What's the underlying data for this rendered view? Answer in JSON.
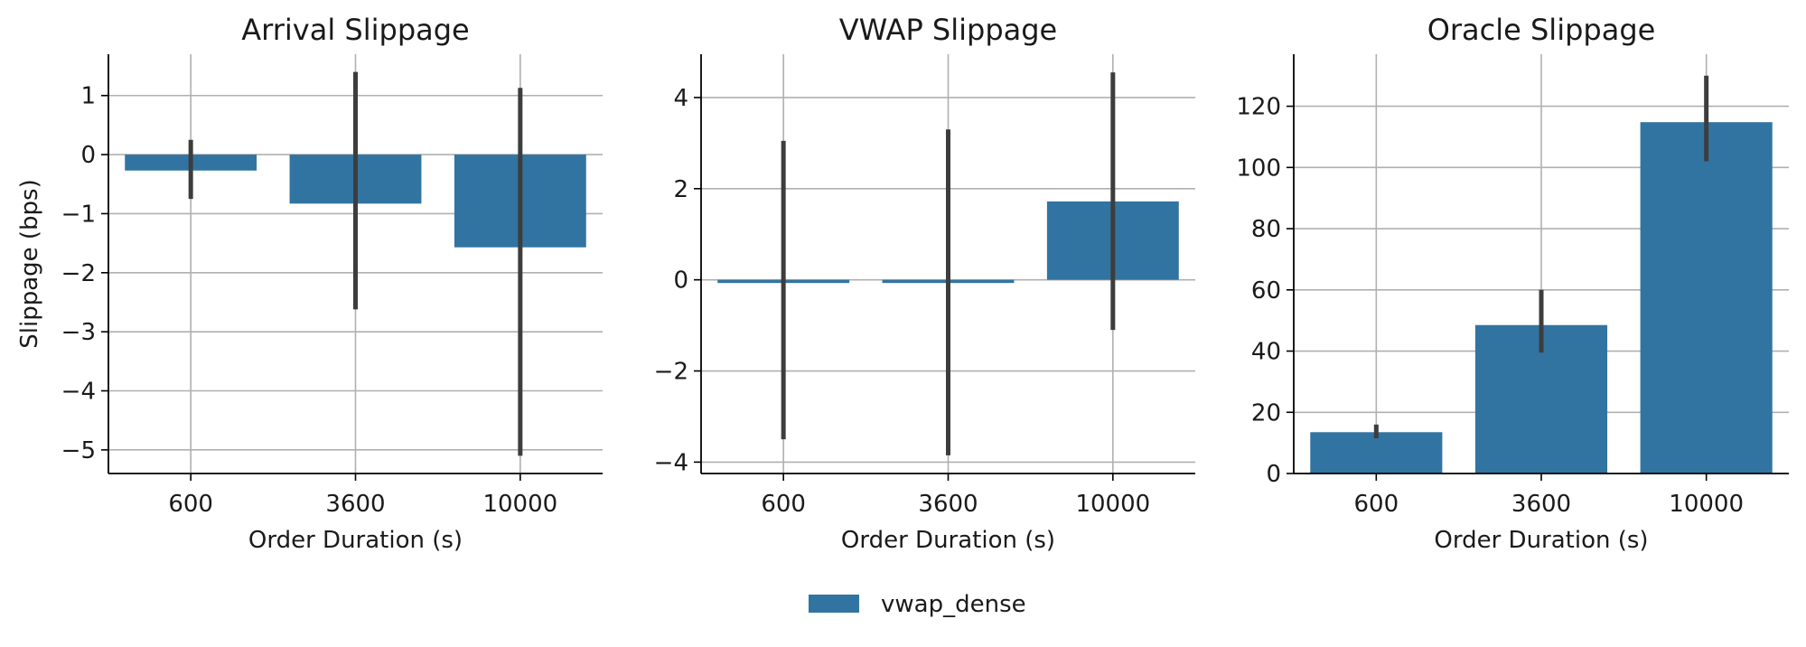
{
  "chart_data": [
    {
      "type": "bar",
      "title": "Arrival Slippage",
      "xlabel": "Order Duration (s)",
      "ylabel": "Slippage (bps)",
      "categories": [
        "600",
        "3600",
        "10000"
      ],
      "series": [
        {
          "name": "vwap_dense",
          "values": [
            -0.27,
            -0.83,
            -1.57
          ],
          "err_low": [
            -0.75,
            -2.62,
            -5.1
          ],
          "err_high": [
            0.25,
            1.4,
            1.13
          ]
        }
      ],
      "ylim": [
        -5.4,
        1.7
      ],
      "yticks": [
        1,
        0,
        -1,
        -2,
        -3,
        -4,
        -5
      ],
      "ytick_labels": [
        "1",
        "0",
        "−1",
        "−2",
        "−3",
        "−4",
        "−5"
      ],
      "grid": true
    },
    {
      "type": "bar",
      "title": "VWAP Slippage",
      "xlabel": "Order Duration (s)",
      "ylabel": "",
      "categories": [
        "600",
        "3600",
        "10000"
      ],
      "series": [
        {
          "name": "vwap_dense",
          "values": [
            -0.07,
            -0.07,
            1.72
          ],
          "err_low": [
            -3.5,
            -3.85,
            -1.1
          ],
          "err_high": [
            3.05,
            3.3,
            4.55
          ]
        }
      ],
      "ylim": [
        -4.25,
        4.95
      ],
      "yticks": [
        4,
        2,
        0,
        -2,
        -4
      ],
      "ytick_labels": [
        "4",
        "2",
        "0",
        "−2",
        "−4"
      ],
      "grid": true
    },
    {
      "type": "bar",
      "title": "Oracle Slippage",
      "xlabel": "Order Duration (s)",
      "ylabel": "",
      "categories": [
        "600",
        "3600",
        "10000"
      ],
      "series": [
        {
          "name": "vwap_dense",
          "values": [
            13.5,
            48.5,
            114.8
          ],
          "err_low": [
            11.5,
            39.5,
            102
          ],
          "err_high": [
            16,
            60,
            130
          ]
        }
      ],
      "ylim": [
        0,
        137
      ],
      "yticks": [
        0,
        20,
        40,
        60,
        80,
        100,
        120
      ],
      "ytick_labels": [
        "0",
        "20",
        "40",
        "60",
        "80",
        "100",
        "120"
      ],
      "grid": true
    }
  ],
  "legend": {
    "placement": "bottom-center",
    "entries": [
      {
        "label": "vwap_dense",
        "color": "#3274a1"
      }
    ]
  },
  "colors": {
    "bar": "#3274a1",
    "errorbar": "#3d3d3d",
    "grid": "#b0b0b0",
    "axis": "#000000"
  }
}
